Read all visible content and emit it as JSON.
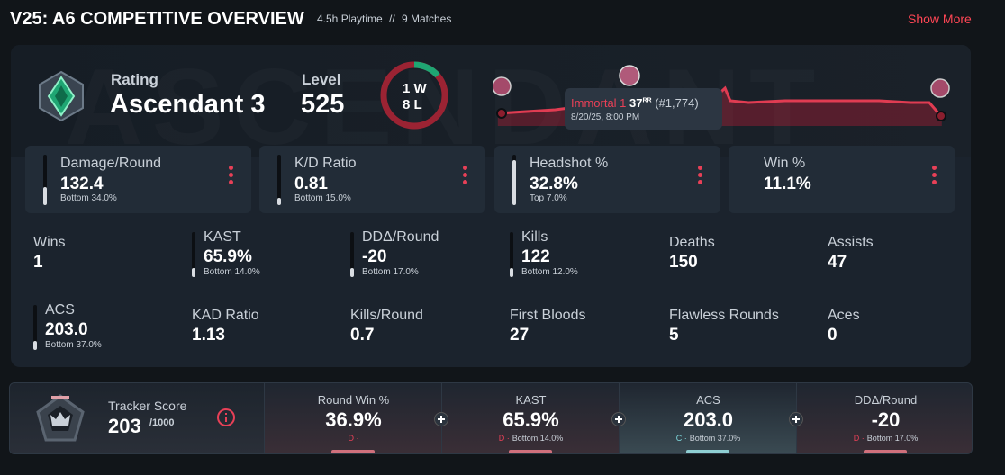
{
  "header": {
    "title": "V25: A6 COMPETITIVE OVERVIEW",
    "playtime": "4.5h Playtime",
    "separator": "//",
    "matches": "9 Matches",
    "show_more": "Show More"
  },
  "overview": {
    "watermark": "ASCENDANT",
    "rating_label": "Rating",
    "rating_value": "Ascendant 3",
    "level_label": "Level",
    "level_value": "525",
    "wins": "1 W",
    "losses": "8 L",
    "tooltip": {
      "rank": "Immortal 1",
      "rr": "37",
      "rr_unit": "RR",
      "position": "(#1,774)",
      "date": "8/20/25, 8:00 PM"
    }
  },
  "cards": [
    {
      "label": "Damage/Round",
      "value": "132.4",
      "sub": "Bottom 34.0%"
    },
    {
      "label": "K/D Ratio",
      "value": "0.81",
      "sub": "Bottom 15.0%"
    },
    {
      "label": "Headshot %",
      "value": "32.8%",
      "sub": "Top 7.0%"
    },
    {
      "label": "Win %",
      "value": "11.1%"
    }
  ],
  "stats": [
    {
      "label": "Wins",
      "value": "1"
    },
    {
      "label": "KAST",
      "value": "65.9%",
      "sub": "Bottom 14.0%"
    },
    {
      "label": "DDΔ/Round",
      "value": "-20",
      "sub": "Bottom 17.0%"
    },
    {
      "label": "Kills",
      "value": "122",
      "sub": "Bottom 12.0%"
    },
    {
      "label": "Deaths",
      "value": "150"
    },
    {
      "label": "Assists",
      "value": "47"
    },
    {
      "label": "ACS",
      "value": "203.0",
      "sub": "Bottom 37.0%"
    },
    {
      "label": "KAD Ratio",
      "value": "1.13"
    },
    {
      "label": "Kills/Round",
      "value": "0.7"
    },
    {
      "label": "First Bloods",
      "value": "27"
    },
    {
      "label": "Flawless Rounds",
      "value": "5"
    },
    {
      "label": "Aces",
      "value": "0"
    }
  ],
  "tracker": {
    "label": "Tracker Score",
    "value": "203",
    "max": "/1000",
    "items": [
      {
        "label": "Round Win %",
        "value": "36.9%",
        "grade": "D ·"
      },
      {
        "label": "KAST",
        "value": "65.9%",
        "grade": "D ·",
        "sub": "Bottom 14.0%"
      },
      {
        "label": "ACS",
        "value": "203.0",
        "grade": "C ·",
        "sub": "Bottom 37.0%"
      },
      {
        "label": "DDΔ/Round",
        "value": "-20",
        "grade": "D ·",
        "sub": "Bottom 17.0%"
      }
    ]
  }
}
